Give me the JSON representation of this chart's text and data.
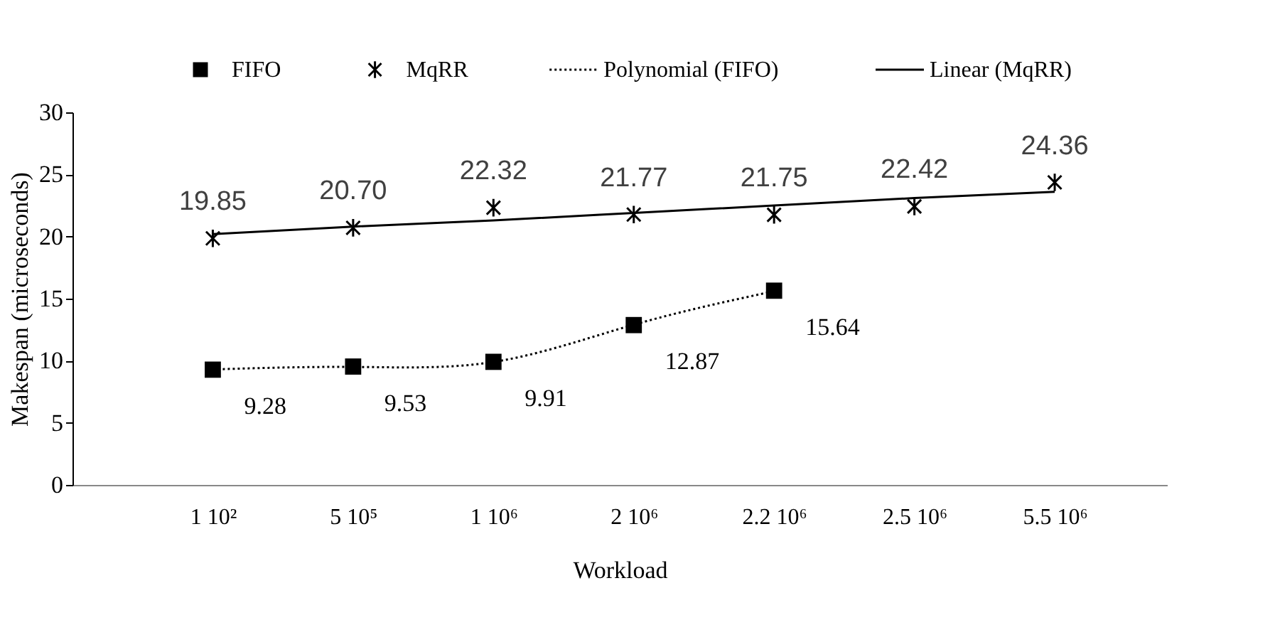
{
  "chart_data": {
    "type": "scatter",
    "xlabel": "Workload",
    "ylabel": "Makespan (microseconds)",
    "categories": [
      "1 10²",
      "5 10⁵",
      "1 10⁶",
      "2 10⁶",
      "2.2 10⁶",
      "2.5 10⁶",
      "5.5 10⁶"
    ],
    "ylim": [
      0,
      30
    ],
    "yticks": [
      0,
      5,
      10,
      15,
      20,
      25,
      30
    ],
    "legend": "top",
    "grid": false,
    "series": [
      {
        "name": "FIFO",
        "marker": "square",
        "color": "#000000",
        "values": [
          9.28,
          9.53,
          9.91,
          12.87,
          15.64,
          null,
          null
        ],
        "value_labels": [
          "9.28",
          "9.53",
          "9.91",
          "12.87",
          "15.64",
          null,
          null
        ]
      },
      {
        "name": "MqRR",
        "marker": "cross",
        "color": "#000000",
        "values": [
          19.85,
          20.7,
          22.32,
          21.77,
          21.75,
          22.42,
          24.36
        ],
        "value_labels": [
          "19.85",
          "20.70",
          "22.32",
          "21.77",
          "21.75",
          "22.42",
          "24.36"
        ]
      },
      {
        "name": "Polynomial (FIFO)",
        "type": "line",
        "line_style": "dotted",
        "color": "#000000",
        "values": [
          9.3,
          9.5,
          9.9,
          12.9,
          15.6,
          null,
          null
        ]
      },
      {
        "name": "Linear (MqRR)",
        "type": "line",
        "line_style": "solid",
        "color": "#000000",
        "values": [
          20.2,
          20.8,
          21.3,
          21.9,
          22.5,
          23.1,
          23.6
        ]
      }
    ]
  }
}
